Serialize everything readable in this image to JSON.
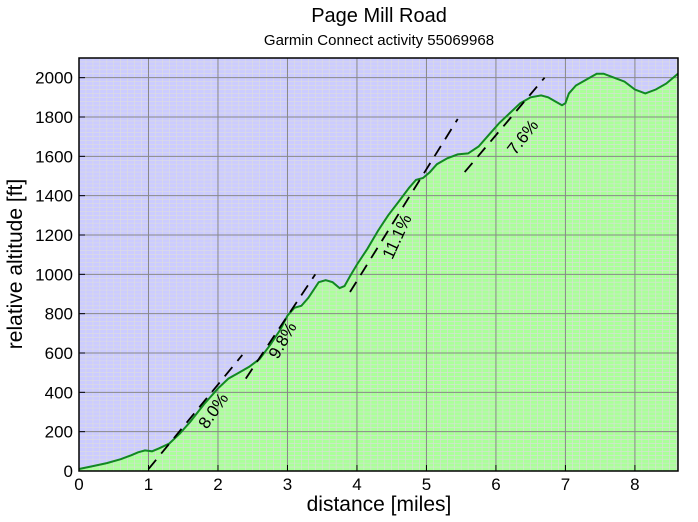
{
  "chart_data": {
    "type": "area",
    "title": "Page Mill Road",
    "subtitle": "Garmin Connect activity 55069968",
    "xlabel": "distance [miles]",
    "ylabel": "relative altitude [ft]",
    "xlim": [
      0,
      8.62
    ],
    "ylim": [
      0,
      2100
    ],
    "xticks": [
      "0",
      "1",
      "2",
      "3",
      "4",
      "5",
      "6",
      "7",
      "8"
    ],
    "yticks": [
      "0",
      "200",
      "400",
      "600",
      "800",
      "1000",
      "1200",
      "1400",
      "1600",
      "1800",
      "2000"
    ],
    "grid": true,
    "colors": {
      "above": "#ccccff",
      "below": "#aaff99",
      "line": "#118822",
      "major_grid": "#888888",
      "minor_grid": "#dddddd"
    },
    "series": [
      {
        "values": [
          [
            0.0,
            10
          ],
          [
            0.2,
            25
          ],
          [
            0.4,
            40
          ],
          [
            0.6,
            60
          ],
          [
            0.75,
            80
          ],
          [
            0.85,
            95
          ],
          [
            0.95,
            105
          ],
          [
            1.05,
            100
          ],
          [
            1.15,
            115
          ],
          [
            1.3,
            140
          ],
          [
            1.45,
            190
          ],
          [
            1.6,
            250
          ],
          [
            1.8,
            340
          ],
          [
            2.0,
            420
          ],
          [
            2.15,
            470
          ],
          [
            2.3,
            500
          ],
          [
            2.45,
            530
          ],
          [
            2.6,
            570
          ],
          [
            2.75,
            640
          ],
          [
            2.9,
            720
          ],
          [
            3.0,
            790
          ],
          [
            3.1,
            830
          ],
          [
            3.2,
            840
          ],
          [
            3.3,
            880
          ],
          [
            3.45,
            960
          ],
          [
            3.55,
            970
          ],
          [
            3.65,
            960
          ],
          [
            3.75,
            930
          ],
          [
            3.82,
            940
          ],
          [
            3.9,
            990
          ],
          [
            4.0,
            1050
          ],
          [
            4.15,
            1130
          ],
          [
            4.3,
            1220
          ],
          [
            4.45,
            1300
          ],
          [
            4.6,
            1370
          ],
          [
            4.75,
            1440
          ],
          [
            4.85,
            1480
          ],
          [
            4.95,
            1490
          ],
          [
            5.05,
            1520
          ],
          [
            5.15,
            1560
          ],
          [
            5.3,
            1590
          ],
          [
            5.45,
            1610
          ],
          [
            5.6,
            1615
          ],
          [
            5.75,
            1650
          ],
          [
            5.9,
            1710
          ],
          [
            6.05,
            1770
          ],
          [
            6.2,
            1820
          ],
          [
            6.35,
            1870
          ],
          [
            6.5,
            1900
          ],
          [
            6.65,
            1910
          ],
          [
            6.75,
            1900
          ],
          [
            6.85,
            1880
          ],
          [
            6.95,
            1860
          ],
          [
            7.0,
            1870
          ],
          [
            7.05,
            1920
          ],
          [
            7.15,
            1960
          ],
          [
            7.3,
            1990
          ],
          [
            7.45,
            2020
          ],
          [
            7.55,
            2020
          ],
          [
            7.7,
            2000
          ],
          [
            7.85,
            1980
          ],
          [
            8.0,
            1940
          ],
          [
            8.15,
            1920
          ],
          [
            8.3,
            1940
          ],
          [
            8.45,
            1970
          ],
          [
            8.62,
            2020
          ]
        ]
      }
    ],
    "trend_lines": [
      {
        "from": [
          1.0,
          10
        ],
        "to": [
          2.35,
          590
        ]
      },
      {
        "from": [
          2.4,
          470
        ],
        "to": [
          3.4,
          1000
        ]
      },
      {
        "from": [
          3.9,
          910
        ],
        "to": [
          5.45,
          1790
        ]
      },
      {
        "from": [
          5.55,
          1520
        ],
        "to": [
          6.7,
          2000
        ]
      }
    ],
    "annotations": [
      {
        "text": "8.0%",
        "x": 2.0,
        "y": 290,
        "angle": -55
      },
      {
        "text": "9.8%",
        "x": 3.0,
        "y": 650,
        "angle": -60
      },
      {
        "text": "11.1%",
        "x": 4.65,
        "y": 1180,
        "angle": -65
      },
      {
        "text": "7.6%",
        "x": 6.45,
        "y": 1680,
        "angle": -52
      }
    ]
  }
}
